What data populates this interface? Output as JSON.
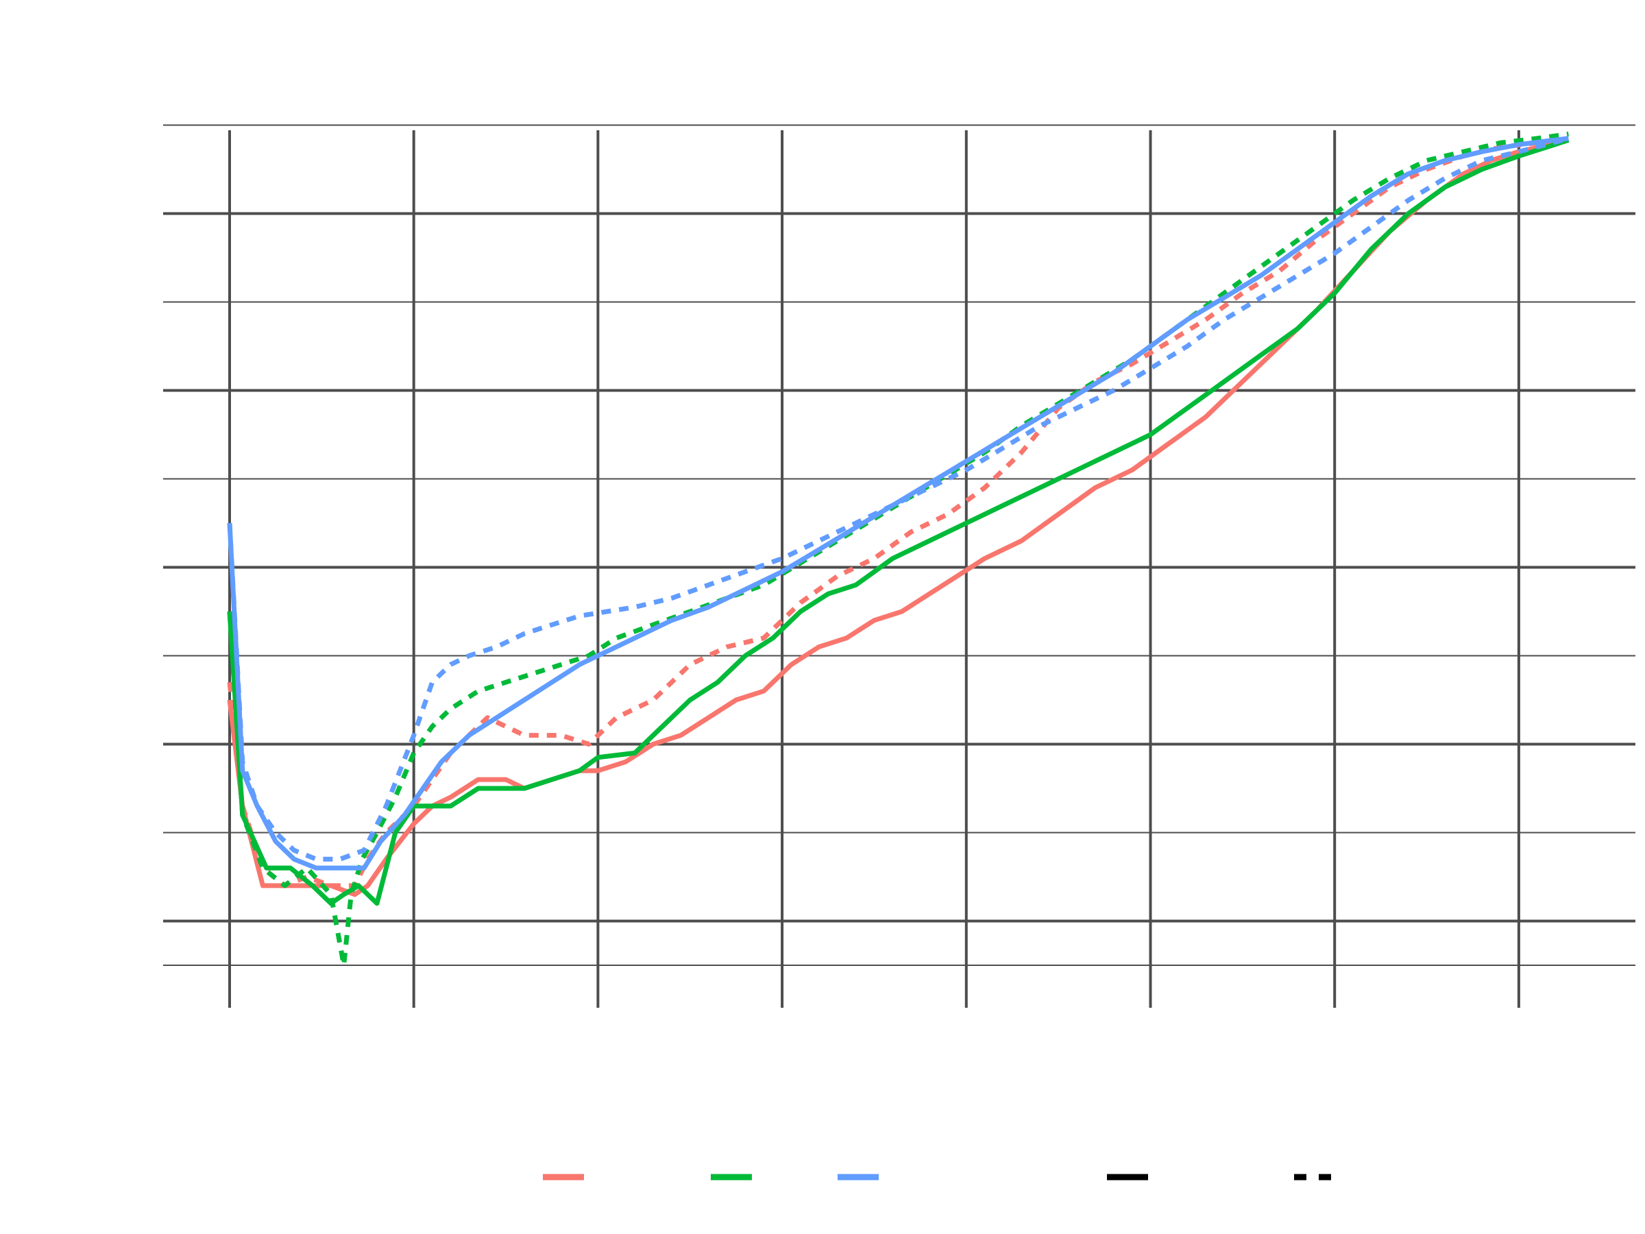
{
  "chart_data": {
    "type": "line",
    "title": "",
    "xlabel": "",
    "ylabel": "",
    "xlim": [
      0,
      7.27
    ],
    "ylim": [
      -0.43,
      9.53
    ],
    "x_major_ticks": [
      0,
      1,
      2,
      3,
      4,
      5,
      6,
      7
    ],
    "y_major_ticks": [
      0.5,
      2.5,
      4.5,
      6.5,
      8.5
    ],
    "y_minor_ticks": [
      0,
      1.5,
      3.5,
      5.5,
      7.5,
      9.5
    ],
    "grid": true,
    "legend": "bottom",
    "colors": {
      "red": "#F8766D",
      "green": "#00BA38",
      "blue": "#619CFF",
      "grid": "#4D4D4D",
      "key": "#000000"
    },
    "legend_keys": [
      {
        "color": "#F8766D",
        "linetype": "solid"
      },
      {
        "color": "#00BA38",
        "linetype": "solid"
      },
      {
        "color": "#619CFF",
        "linetype": "solid"
      },
      {
        "color": "#000000",
        "linetype": "solid"
      },
      {
        "color": "#000000",
        "linetype": "dashed"
      }
    ],
    "series": [
      {
        "color": "#F8766D",
        "linetype": "solid",
        "x": [
          0,
          0.07,
          0.18,
          0.3,
          0.42,
          0.55,
          0.68,
          0.75,
          0.85,
          1.0,
          1.1,
          1.2,
          1.35,
          1.5,
          1.6,
          1.75,
          1.9,
          2.0,
          2.15,
          2.3,
          2.45,
          2.6,
          2.75,
          2.9,
          3.05,
          3.2,
          3.35,
          3.5,
          3.65,
          3.8,
          3.95,
          4.1,
          4.3,
          4.5,
          4.7,
          4.9,
          5.1,
          5.3,
          5.5,
          5.7,
          5.9,
          6.1,
          6.3,
          6.5,
          6.7,
          6.85,
          7.0,
          7.15,
          7.27
        ],
        "y": [
          3.0,
          1.8,
          0.9,
          0.9,
          0.9,
          0.9,
          0.8,
          0.9,
          1.2,
          1.6,
          1.8,
          1.9,
          2.1,
          2.1,
          2.0,
          2.1,
          2.2,
          2.2,
          2.3,
          2.5,
          2.6,
          2.8,
          3.0,
          3.1,
          3.4,
          3.6,
          3.7,
          3.9,
          4.0,
          4.2,
          4.4,
          4.6,
          4.8,
          5.1,
          5.4,
          5.6,
          5.9,
          6.2,
          6.6,
          7.0,
          7.4,
          7.85,
          8.3,
          8.65,
          8.95,
          9.1,
          9.2,
          9.27,
          9.33
        ]
      },
      {
        "color": "#F8766D",
        "linetype": "dashed",
        "x": [
          0,
          0.07,
          0.18,
          0.3,
          0.42,
          0.55,
          0.68,
          0.75,
          0.85,
          1.0,
          1.2,
          1.4,
          1.6,
          1.8,
          1.95,
          2.1,
          2.3,
          2.5,
          2.7,
          2.9,
          3.1,
          3.3,
          3.5,
          3.7,
          3.9,
          4.1,
          4.3,
          4.5,
          4.7,
          4.9,
          5.1,
          5.3,
          5.5,
          5.7,
          5.9,
          6.1,
          6.3,
          6.5,
          6.7,
          6.9,
          7.1,
          7.27
        ],
        "y": [
          3.2,
          1.8,
          1.1,
          0.9,
          1.0,
          0.9,
          0.9,
          1.2,
          1.5,
          1.8,
          2.4,
          2.8,
          2.6,
          2.6,
          2.5,
          2.8,
          3.0,
          3.4,
          3.6,
          3.7,
          4.1,
          4.4,
          4.6,
          4.9,
          5.1,
          5.4,
          5.8,
          6.3,
          6.6,
          6.8,
          7.05,
          7.3,
          7.6,
          7.85,
          8.2,
          8.5,
          8.8,
          9.0,
          9.15,
          9.25,
          9.3,
          9.35
        ]
      },
      {
        "color": "#00BA38",
        "linetype": "solid",
        "x": [
          0,
          0.07,
          0.2,
          0.33,
          0.45,
          0.55,
          0.62,
          0.7,
          0.8,
          0.9,
          1.0,
          1.1,
          1.2,
          1.35,
          1.5,
          1.6,
          1.75,
          1.9,
          2.0,
          2.2,
          2.35,
          2.5,
          2.65,
          2.8,
          2.95,
          3.1,
          3.25,
          3.4,
          3.6,
          3.8,
          4.0,
          4.2,
          4.4,
          4.6,
          4.8,
          5.0,
          5.2,
          5.4,
          5.6,
          5.8,
          6.0,
          6.2,
          6.4,
          6.6,
          6.8,
          7.0,
          7.15,
          7.27
        ],
        "y": [
          4.0,
          1.7,
          1.1,
          1.1,
          0.9,
          0.7,
          0.8,
          0.9,
          0.7,
          1.5,
          1.8,
          1.8,
          1.8,
          2.0,
          2.0,
          2.0,
          2.1,
          2.2,
          2.35,
          2.4,
          2.7,
          3.0,
          3.2,
          3.5,
          3.7,
          4.0,
          4.2,
          4.3,
          4.6,
          4.8,
          5.0,
          5.2,
          5.4,
          5.6,
          5.8,
          6.0,
          6.3,
          6.6,
          6.9,
          7.2,
          7.6,
          8.1,
          8.5,
          8.8,
          9.0,
          9.15,
          9.25,
          9.33
        ]
      },
      {
        "color": "#00BA38",
        "linetype": "dashed",
        "x": [
          0,
          0.07,
          0.18,
          0.3,
          0.42,
          0.55,
          0.62,
          0.66,
          0.72,
          0.8,
          0.9,
          1.0,
          1.1,
          1.2,
          1.35,
          1.5,
          1.65,
          1.8,
          1.95,
          2.1,
          2.3,
          2.5,
          2.7,
          2.9,
          3.1,
          3.3,
          3.5,
          3.7,
          3.9,
          4.1,
          4.3,
          4.5,
          4.7,
          4.9,
          5.1,
          5.3,
          5.5,
          5.7,
          5.9,
          6.1,
          6.3,
          6.5,
          6.7,
          6.9,
          7.1,
          7.27
        ],
        "y": [
          4.0,
          1.7,
          1.1,
          0.9,
          1.1,
          0.8,
          0.0,
          0.8,
          1.2,
          1.5,
          1.9,
          2.4,
          2.7,
          2.9,
          3.1,
          3.2,
          3.3,
          3.4,
          3.5,
          3.7,
          3.85,
          4.0,
          4.15,
          4.3,
          4.55,
          4.8,
          5.05,
          5.3,
          5.55,
          5.8,
          6.1,
          6.35,
          6.6,
          6.85,
          7.15,
          7.45,
          7.75,
          8.05,
          8.35,
          8.65,
          8.9,
          9.1,
          9.2,
          9.3,
          9.35,
          9.4
        ]
      },
      {
        "color": "#619CFF",
        "linetype": "solid",
        "x": [
          0,
          0.07,
          0.15,
          0.25,
          0.35,
          0.47,
          0.6,
          0.73,
          0.82,
          0.95,
          1.05,
          1.15,
          1.3,
          1.45,
          1.6,
          1.75,
          1.9,
          2.05,
          2.2,
          2.4,
          2.6,
          2.8,
          3.0,
          3.2,
          3.4,
          3.6,
          3.8,
          4.0,
          4.2,
          4.4,
          4.6,
          4.8,
          5.0,
          5.2,
          5.4,
          5.6,
          5.8,
          6.0,
          6.2,
          6.4,
          6.6,
          6.8,
          7.0,
          7.15,
          7.27
        ],
        "y": [
          5.0,
          2.2,
          1.8,
          1.4,
          1.2,
          1.1,
          1.1,
          1.1,
          1.4,
          1.7,
          2.0,
          2.3,
          2.6,
          2.8,
          3.0,
          3.2,
          3.4,
          3.55,
          3.7,
          3.9,
          4.05,
          4.25,
          4.45,
          4.7,
          4.95,
          5.2,
          5.45,
          5.7,
          5.95,
          6.2,
          6.45,
          6.7,
          7.0,
          7.3,
          7.55,
          7.8,
          8.1,
          8.4,
          8.7,
          8.95,
          9.1,
          9.2,
          9.28,
          9.32,
          9.35
        ]
      },
      {
        "color": "#619CFF",
        "linetype": "dashed",
        "x": [
          0,
          0.07,
          0.15,
          0.25,
          0.35,
          0.47,
          0.6,
          0.73,
          0.85,
          1.0,
          1.1,
          1.2,
          1.3,
          1.45,
          1.6,
          1.75,
          1.9,
          2.05,
          2.2,
          2.4,
          2.6,
          2.8,
          3.0,
          3.2,
          3.4,
          3.6,
          3.8,
          4.0,
          4.2,
          4.4,
          4.6,
          4.8,
          5.0,
          5.2,
          5.4,
          5.6,
          5.8,
          6.0,
          6.2,
          6.4,
          6.6,
          6.8,
          7.0,
          7.15,
          7.27
        ],
        "y": [
          5.0,
          2.3,
          1.8,
          1.5,
          1.3,
          1.2,
          1.2,
          1.3,
          1.8,
          2.6,
          3.2,
          3.4,
          3.5,
          3.6,
          3.75,
          3.85,
          3.95,
          4.0,
          4.05,
          4.15,
          4.3,
          4.45,
          4.6,
          4.8,
          5.0,
          5.2,
          5.4,
          5.6,
          5.85,
          6.1,
          6.3,
          6.5,
          6.75,
          7.0,
          7.3,
          7.55,
          7.8,
          8.05,
          8.35,
          8.65,
          8.9,
          9.1,
          9.2,
          9.28,
          9.35
        ]
      }
    ]
  }
}
